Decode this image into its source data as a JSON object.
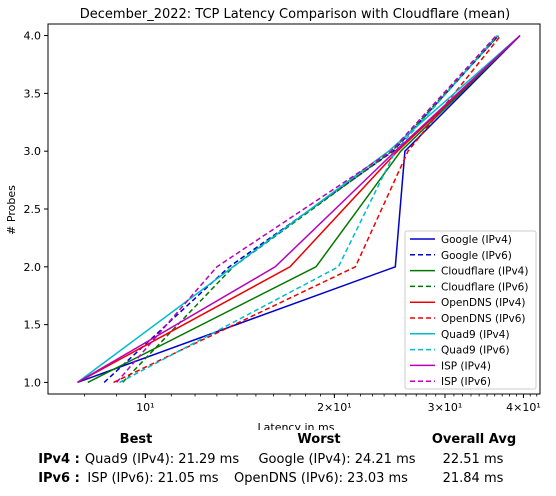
{
  "chart_data": {
    "type": "line",
    "title": "December_2022: TCP Latency Comparison with Cloudflare (mean)",
    "xlabel": "Latency in ms",
    "ylabel": "# Probes",
    "xscale": "log",
    "xlim": [
      7.0,
      42.5
    ],
    "ylim": [
      0.9,
      4.1
    ],
    "xticks": [
      {
        "value": 10,
        "label": "10¹"
      },
      {
        "value": 20,
        "label": "2×10¹"
      },
      {
        "value": 30,
        "label": "3×10¹"
      },
      {
        "value": 40,
        "label": "4×10¹"
      }
    ],
    "yticks": [
      1.0,
      1.5,
      2.0,
      2.5,
      3.0,
      3.5,
      4.0
    ],
    "ytick_labels": [
      "1.0",
      "1.5",
      "2.0",
      "2.5",
      "3.0",
      "3.5",
      "4.0"
    ],
    "legend_position": "lower-right",
    "series": [
      {
        "name": "Google (IPv4)",
        "color": "#0000cc",
        "dash": "solid",
        "x": [
          7.8,
          25.0,
          25.9,
          39.5
        ],
        "y": [
          1,
          2,
          3,
          4
        ]
      },
      {
        "name": "Google (IPv6)",
        "color": "#0000cc",
        "dash": "dashed",
        "x": [
          8.6,
          13.6,
          24.8,
          36.5
        ],
        "y": [
          1,
          2,
          3,
          4
        ]
      },
      {
        "name": "Cloudflare (IPv4)",
        "color": "#007700",
        "dash": "solid",
        "x": [
          8.1,
          18.7,
          25.5,
          39.5
        ],
        "y": [
          1,
          2,
          3,
          4
        ]
      },
      {
        "name": "Cloudflare (IPv6)",
        "color": "#007700",
        "dash": "dashed",
        "x": [
          9.2,
          13.8,
          24.7,
          36.5
        ],
        "y": [
          1,
          2,
          3,
          4
        ]
      },
      {
        "name": "OpenDNS (IPv4)",
        "color": "#ee0000",
        "dash": "solid",
        "x": [
          7.8,
          17.0,
          25.2,
          39.5
        ],
        "y": [
          1,
          2,
          3,
          4
        ]
      },
      {
        "name": "OpenDNS (IPv6)",
        "color": "#ee0000",
        "dash": "dashed",
        "x": [
          8.9,
          21.6,
          26.2,
          36.8
        ],
        "y": [
          1,
          2,
          3,
          4
        ]
      },
      {
        "name": "Quad9 (IPv4)",
        "color": "#00bbcc",
        "dash": "solid",
        "x": [
          7.8,
          24.4,
          39.5
        ],
        "y": [
          1,
          3,
          4
        ]
      },
      {
        "name": "Quad9 (IPv6)",
        "color": "#00bbcc",
        "dash": "dashed",
        "x": [
          9.1,
          20.3,
          25.0,
          36.3
        ],
        "y": [
          1,
          2,
          3,
          4
        ]
      },
      {
        "name": "ISP (IPv4)",
        "color": "#bb00bb",
        "dash": "solid",
        "x": [
          7.8,
          16.1,
          25.0,
          39.5
        ],
        "y": [
          1,
          2,
          3,
          4
        ]
      },
      {
        "name": "ISP (IPv6)",
        "color": "#bb00bb",
        "dash": "dashed",
        "x": [
          9.0,
          13.0,
          24.6,
          36.2
        ],
        "y": [
          1,
          2,
          3,
          4
        ]
      }
    ]
  },
  "summary": {
    "headers": {
      "best": "Best",
      "worst": "Worst",
      "overall": "Overall Avg"
    },
    "rows": [
      {
        "label": "IPv4 :",
        "best": "Quad9 (IPv4): 21.29 ms",
        "worst": "Google (IPv4): 24.21 ms",
        "overall": "22.51 ms"
      },
      {
        "label": "IPv6 :",
        "best": "ISP (IPv6): 21.05 ms",
        "worst": "OpenDNS (IPv6): 23.03 ms",
        "overall": "21.84 ms"
      }
    ]
  }
}
